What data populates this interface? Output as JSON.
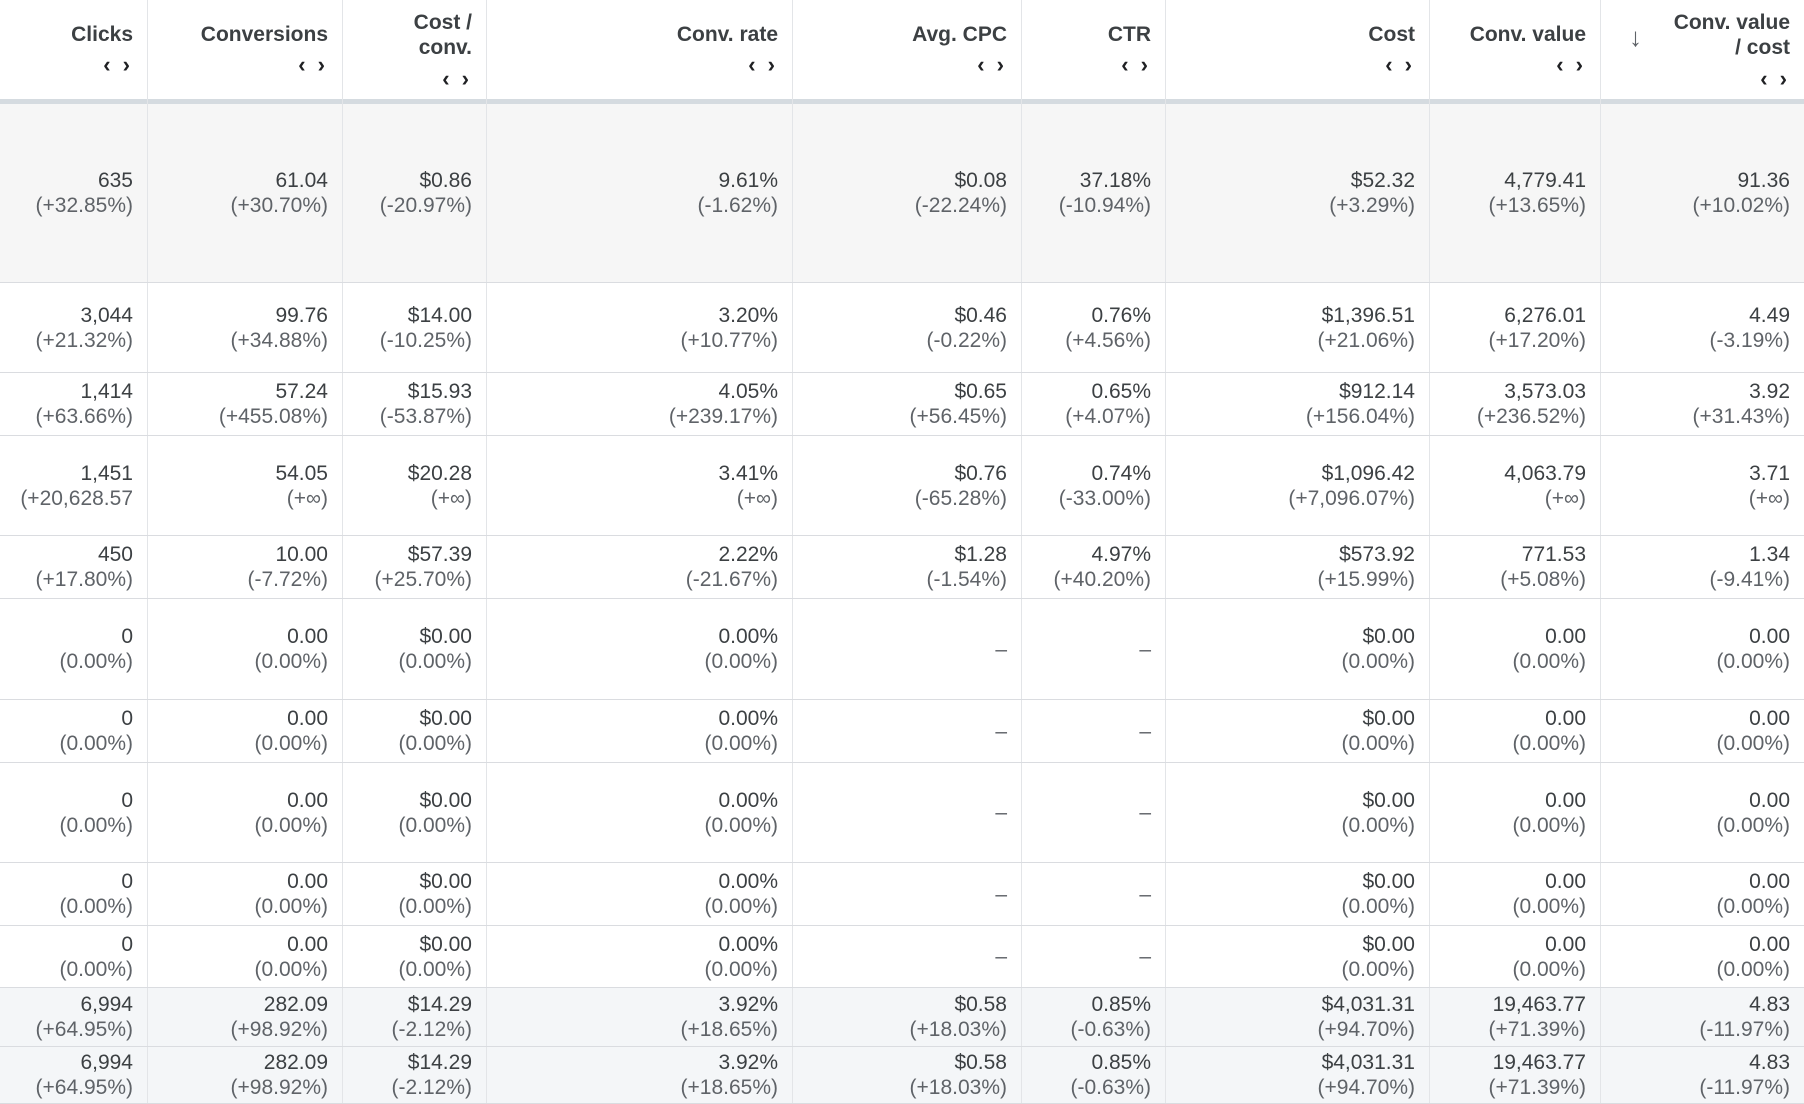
{
  "columns": [
    {
      "key": "clicks",
      "label": "Clicks"
    },
    {
      "key": "conversions",
      "label": "Conversions"
    },
    {
      "key": "cost_per_conv",
      "label": "Cost /\nconv."
    },
    {
      "key": "conv_rate",
      "label": "Conv. rate"
    },
    {
      "key": "avg_cpc",
      "label": "Avg. CPC"
    },
    {
      "key": "ctr",
      "label": "CTR"
    },
    {
      "key": "cost",
      "label": "Cost"
    },
    {
      "key": "conv_value",
      "label": "Conv. value"
    },
    {
      "key": "conv_value_per_cost",
      "label": "Conv. value\n/ cost",
      "sorted": "descending"
    }
  ],
  "sort_toggle_glyph": "‹ ›",
  "sort_arrow_glyph": "↓",
  "rows": [
    {
      "type": "summary",
      "cells": [
        [
          "635",
          "(+32.85%)"
        ],
        [
          "61.04",
          "(+30.70%)"
        ],
        [
          "$0.86",
          "(-20.97%)"
        ],
        [
          "9.61%",
          "(-1.62%)"
        ],
        [
          "$0.08",
          "(-22.24%)"
        ],
        [
          "37.18%",
          "(-10.94%)"
        ],
        [
          "$52.32",
          "(+3.29%)"
        ],
        [
          "4,779.41",
          "(+13.65%)"
        ],
        [
          "91.36",
          "(+10.02%)"
        ]
      ]
    },
    {
      "type": "data",
      "cells": [
        [
          "3,044",
          "(+21.32%)"
        ],
        [
          "99.76",
          "(+34.88%)"
        ],
        [
          "$14.00",
          "(-10.25%)"
        ],
        [
          "3.20%",
          "(+10.77%)"
        ],
        [
          "$0.46",
          "(-0.22%)"
        ],
        [
          "0.76%",
          "(+4.56%)"
        ],
        [
          "$1,396.51",
          "(+21.06%)"
        ],
        [
          "6,276.01",
          "(+17.20%)"
        ],
        [
          "4.49",
          "(-3.19%)"
        ]
      ]
    },
    {
      "type": "data",
      "cells": [
        [
          "1,414",
          "(+63.66%)"
        ],
        [
          "57.24",
          "(+455.08%)"
        ],
        [
          "$15.93",
          "(-53.87%)"
        ],
        [
          "4.05%",
          "(+239.17%)"
        ],
        [
          "$0.65",
          "(+56.45%)"
        ],
        [
          "0.65%",
          "(+4.07%)"
        ],
        [
          "$912.14",
          "(+156.04%)"
        ],
        [
          "3,573.03",
          "(+236.52%)"
        ],
        [
          "3.92",
          "(+31.43%)"
        ]
      ]
    },
    {
      "type": "data",
      "cells": [
        [
          "1,451",
          "(+20,628.57"
        ],
        [
          "54.05",
          "(+∞)"
        ],
        [
          "$20.28",
          "(+∞)"
        ],
        [
          "3.41%",
          "(+∞)"
        ],
        [
          "$0.76",
          "(-65.28%)"
        ],
        [
          "0.74%",
          "(-33.00%)"
        ],
        [
          "$1,096.42",
          "(+7,096.07%)"
        ],
        [
          "4,063.79",
          "(+∞)"
        ],
        [
          "3.71",
          "(+∞)"
        ]
      ]
    },
    {
      "type": "data",
      "cells": [
        [
          "450",
          "(+17.80%)"
        ],
        [
          "10.00",
          "(-7.72%)"
        ],
        [
          "$57.39",
          "(+25.70%)"
        ],
        [
          "2.22%",
          "(-21.67%)"
        ],
        [
          "$1.28",
          "(-1.54%)"
        ],
        [
          "4.97%",
          "(+40.20%)"
        ],
        [
          "$573.92",
          "(+15.99%)"
        ],
        [
          "771.53",
          "(+5.08%)"
        ],
        [
          "1.34",
          "(-9.41%)"
        ]
      ]
    },
    {
      "type": "data",
      "cells": [
        [
          "0",
          "(0.00%)"
        ],
        [
          "0.00",
          "(0.00%)"
        ],
        [
          "$0.00",
          "(0.00%)"
        ],
        [
          "0.00%",
          "(0.00%)"
        ],
        [
          "–"
        ],
        [
          "–"
        ],
        [
          "$0.00",
          "(0.00%)"
        ],
        [
          "0.00",
          "(0.00%)"
        ],
        [
          "0.00",
          "(0.00%)"
        ]
      ]
    },
    {
      "type": "data",
      "cells": [
        [
          "0",
          "(0.00%)"
        ],
        [
          "0.00",
          "(0.00%)"
        ],
        [
          "$0.00",
          "(0.00%)"
        ],
        [
          "0.00%",
          "(0.00%)"
        ],
        [
          "–"
        ],
        [
          "–"
        ],
        [
          "$0.00",
          "(0.00%)"
        ],
        [
          "0.00",
          "(0.00%)"
        ],
        [
          "0.00",
          "(0.00%)"
        ]
      ]
    },
    {
      "type": "data",
      "cells": [
        [
          "0",
          "(0.00%)"
        ],
        [
          "0.00",
          "(0.00%)"
        ],
        [
          "$0.00",
          "(0.00%)"
        ],
        [
          "0.00%",
          "(0.00%)"
        ],
        [
          "–"
        ],
        [
          "–"
        ],
        [
          "$0.00",
          "(0.00%)"
        ],
        [
          "0.00",
          "(0.00%)"
        ],
        [
          "0.00",
          "(0.00%)"
        ]
      ]
    },
    {
      "type": "data",
      "cells": [
        [
          "0",
          "(0.00%)"
        ],
        [
          "0.00",
          "(0.00%)"
        ],
        [
          "$0.00",
          "(0.00%)"
        ],
        [
          "0.00%",
          "(0.00%)"
        ],
        [
          "–"
        ],
        [
          "–"
        ],
        [
          "$0.00",
          "(0.00%)"
        ],
        [
          "0.00",
          "(0.00%)"
        ],
        [
          "0.00",
          "(0.00%)"
        ]
      ]
    },
    {
      "type": "data",
      "cells": [
        [
          "0",
          "(0.00%)"
        ],
        [
          "0.00",
          "(0.00%)"
        ],
        [
          "$0.00",
          "(0.00%)"
        ],
        [
          "0.00%",
          "(0.00%)"
        ],
        [
          "–"
        ],
        [
          "–"
        ],
        [
          "$0.00",
          "(0.00%)"
        ],
        [
          "0.00",
          "(0.00%)"
        ],
        [
          "0.00",
          "(0.00%)"
        ]
      ]
    },
    {
      "type": "total",
      "cells": [
        [
          "6,994",
          "(+64.95%)"
        ],
        [
          "282.09",
          "(+98.92%)"
        ],
        [
          "$14.29",
          "(-2.12%)"
        ],
        [
          "3.92%",
          "(+18.65%)"
        ],
        [
          "$0.58",
          "(+18.03%)"
        ],
        [
          "0.85%",
          "(-0.63%)"
        ],
        [
          "$4,031.31",
          "(+94.70%)"
        ],
        [
          "19,463.77",
          "(+71.39%)"
        ],
        [
          "4.83",
          "(-11.97%)"
        ]
      ]
    },
    {
      "type": "total",
      "cells": [
        [
          "6,994",
          "(+64.95%)"
        ],
        [
          "282.09",
          "(+98.92%)"
        ],
        [
          "$14.29",
          "(-2.12%)"
        ],
        [
          "3.92%",
          "(+18.65%)"
        ],
        [
          "$0.58",
          "(+18.03%)"
        ],
        [
          "0.85%",
          "(-0.63%)"
        ],
        [
          "$4,031.31",
          "(+94.70%)"
        ],
        [
          "19,463.77",
          "(+71.39%)"
        ],
        [
          "4.83",
          "(-11.97%)"
        ]
      ]
    }
  ]
}
